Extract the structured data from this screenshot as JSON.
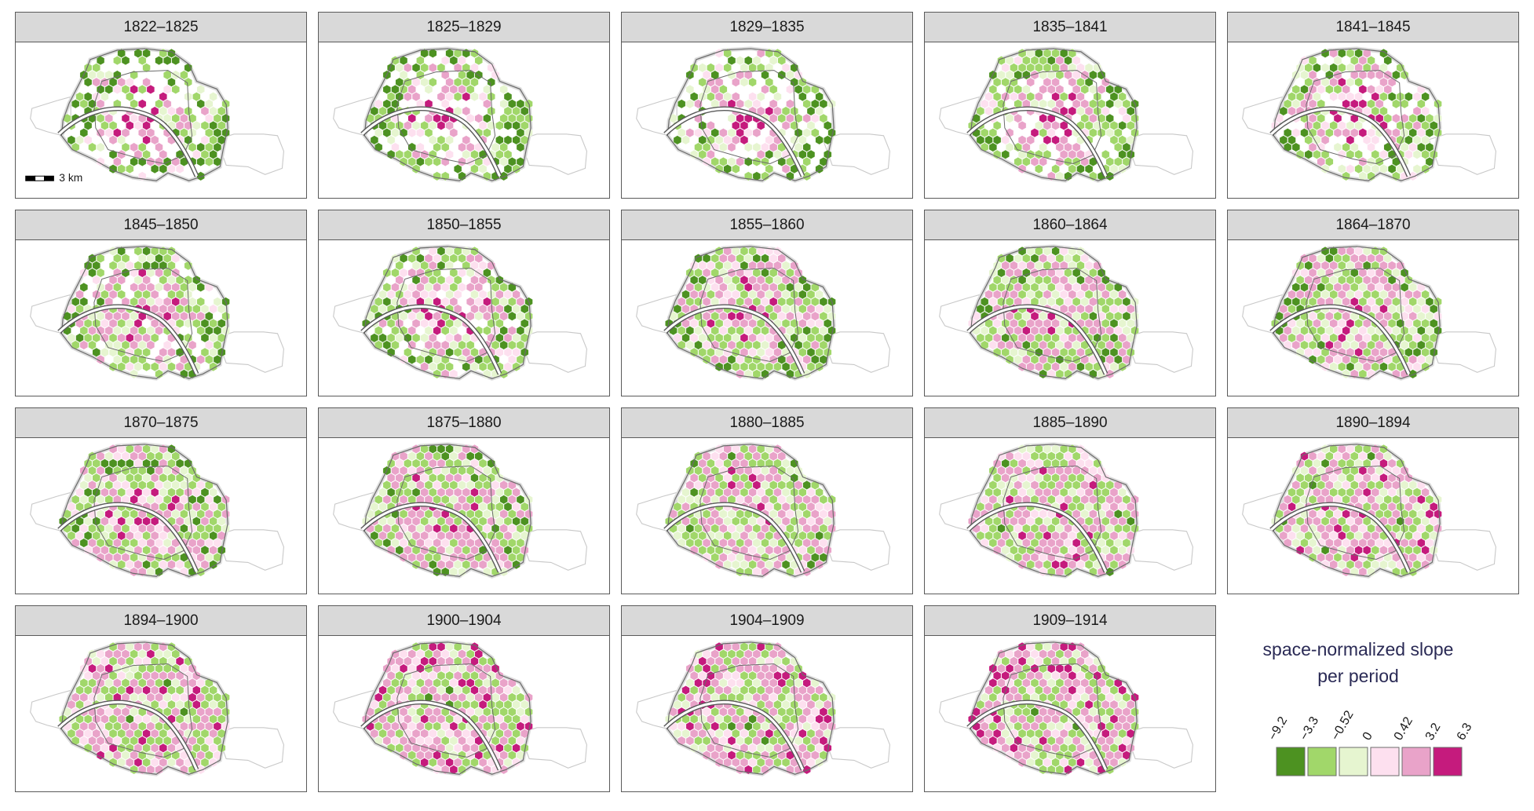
{
  "facets": [
    "1822–1825",
    "1825–1829",
    "1829–1835",
    "1835–1841",
    "1841–1845",
    "1845–1850",
    "1850–1855",
    "1855–1860",
    "1860–1864",
    "1864–1870",
    "1870–1875",
    "1875–1880",
    "1880–1885",
    "1885–1890",
    "1890–1894",
    "1894–1900",
    "1900–1904",
    "1904–1909",
    "1909–1914"
  ],
  "scale_bar": {
    "label": "3 km"
  },
  "legend": {
    "title_line1": "space-normalized slope",
    "title_line2": "per period",
    "breaks": [
      "−9.2",
      "−3.3",
      "−0.52",
      "0",
      "0.42",
      "3.2",
      "6.3"
    ],
    "colors": [
      "#4d9221",
      "#a1d76a",
      "#e6f5d0",
      "#fde0ef",
      "#e9a3c9",
      "#c51b7d"
    ]
  }
}
